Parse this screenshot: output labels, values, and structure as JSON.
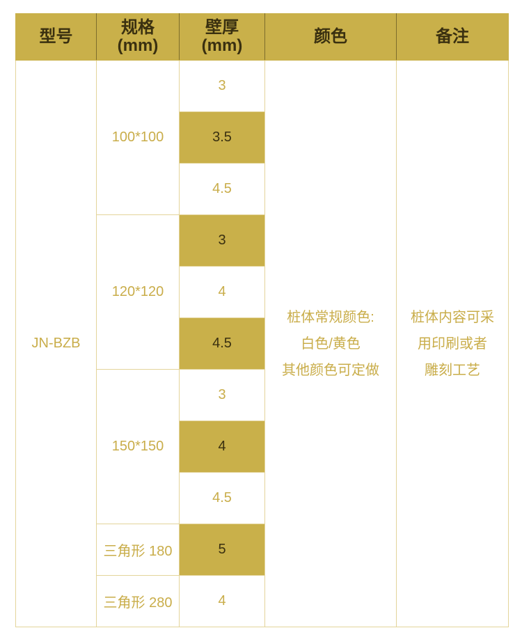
{
  "headers": {
    "model": "型号",
    "spec_line1": "规格",
    "spec_line2": "(mm)",
    "thick_line1": "壁厚",
    "thick_line2": "(mm)",
    "color": "颜色",
    "remark": "备注"
  },
  "model": "JN-BZB",
  "specs": [
    "100*100",
    "120*120",
    "150*150",
    "三角形 180",
    "三角形 280"
  ],
  "thickness": [
    "3",
    "3.5",
    "4.5",
    "3",
    "4",
    "4.5",
    "3",
    "4",
    "4.5",
    "5",
    "4"
  ],
  "color_note": [
    "桩体常规颜色:",
    "白色/黄色",
    "其他颜色可定做"
  ],
  "remark_note": [
    "桩体内容可采",
    "用印刷或者",
    "雕刻工艺"
  ],
  "colors": {
    "accent": "#c9b04a",
    "text_gold": "#c9ad4a",
    "text_dark": "#3a3010"
  }
}
